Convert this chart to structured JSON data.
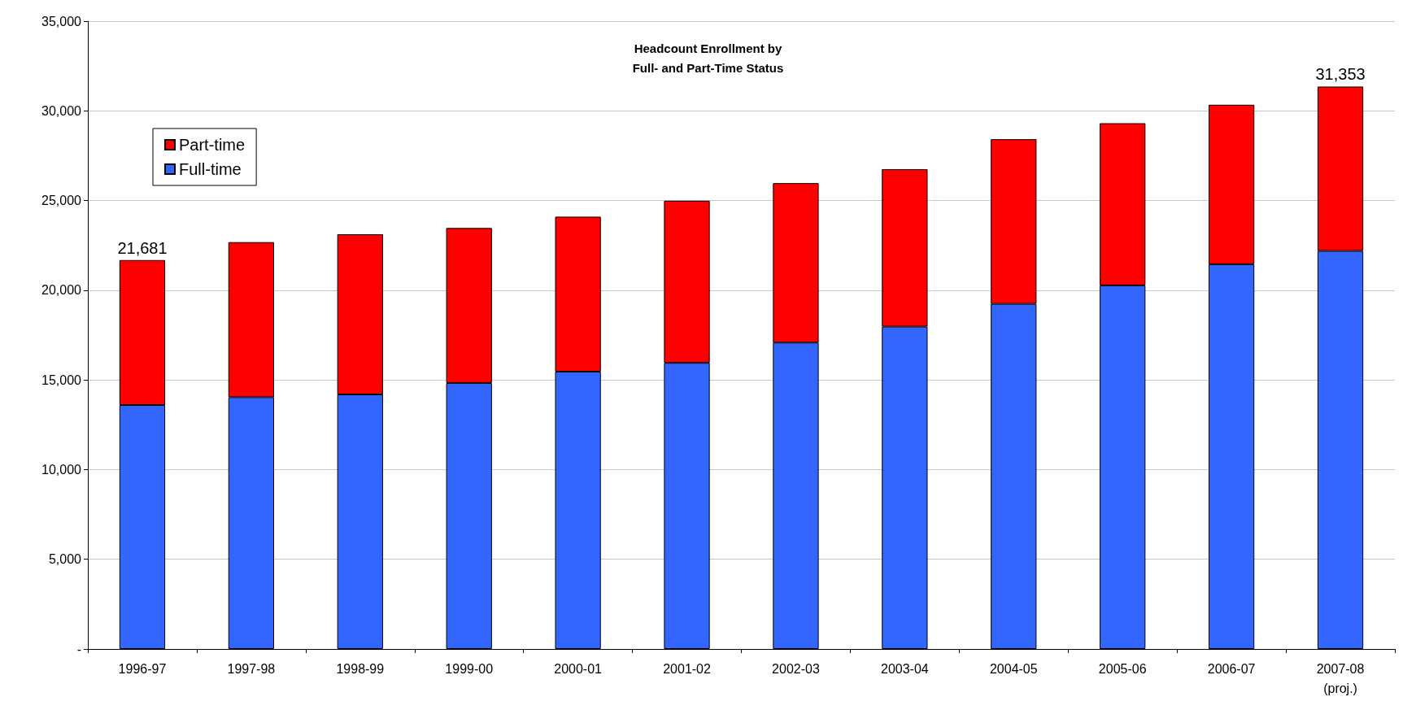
{
  "chart_data": {
    "type": "bar",
    "title": "Headcount Enrollment by\nFull- and Part-Time Status",
    "stacked": true,
    "categories": [
      "1996-97",
      "1997-98",
      "1998-99",
      "1999-00",
      "2000-01",
      "2001-02",
      "2002-03",
      "2003-04",
      "2004-05",
      "2005-06",
      "2006-07",
      "2007-08\n(proj.)"
    ],
    "series": [
      {
        "name": "Full-time",
        "color": "#3366ff",
        "values": [
          13600,
          14040,
          14190,
          14830,
          15460,
          15950,
          17080,
          17970,
          19240,
          20270,
          21450,
          22190
        ]
      },
      {
        "name": "Part-time",
        "color": "#ff0000",
        "values": [
          8081,
          8640,
          8930,
          8640,
          8640,
          9040,
          8890,
          8780,
          9180,
          9040,
          8890,
          9163
        ]
      }
    ],
    "totals": [
      "21,681",
      null,
      null,
      null,
      null,
      null,
      null,
      null,
      null,
      null,
      null,
      "31,353"
    ],
    "ylim": [
      0,
      35000
    ],
    "yticks": [
      {
        "value": 0,
        "label": "-"
      },
      {
        "value": 5000,
        "label": "5,000"
      },
      {
        "value": 10000,
        "label": "10,000"
      },
      {
        "value": 15000,
        "label": "15,000"
      },
      {
        "value": 20000,
        "label": "20,000"
      },
      {
        "value": 25000,
        "label": "25,000"
      },
      {
        "value": 30000,
        "label": "30,000"
      },
      {
        "value": 35000,
        "label": "35,000"
      }
    ],
    "grid": "y",
    "legend": "top left"
  }
}
